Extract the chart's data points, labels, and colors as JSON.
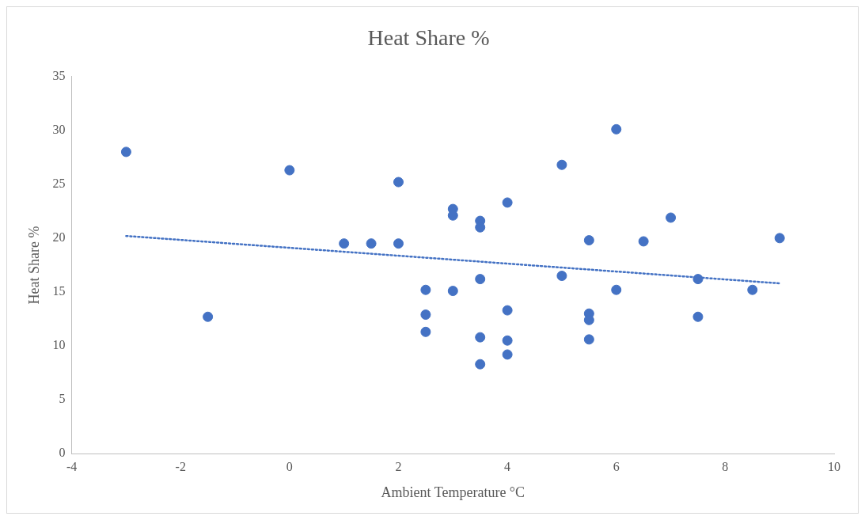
{
  "chart_data": {
    "type": "scatter",
    "title": "Heat Share %",
    "xlabel": "Ambient Temperature °C",
    "ylabel": "Heat Share %",
    "xlim": [
      -4,
      10
    ],
    "xticks": [
      -4,
      -2,
      0,
      2,
      4,
      6,
      8,
      10
    ],
    "ylim": [
      0,
      35
    ],
    "yticks": [
      0,
      5,
      10,
      15,
      20,
      25,
      30,
      35
    ],
    "grid": false,
    "legend": false,
    "marker": "circle",
    "series": [
      {
        "type": "scatter",
        "color": "#4472c4",
        "x": [
          -3,
          -1.5,
          0,
          1,
          1.5,
          2,
          2,
          2.5,
          2.5,
          2.5,
          3,
          3,
          3,
          3.5,
          3.5,
          3.5,
          3.5,
          3.5,
          4,
          4,
          4,
          4,
          5,
          5,
          5.5,
          5.5,
          5.5,
          5.5,
          6,
          6,
          6.5,
          7,
          7.5,
          7.5,
          8.5,
          9
        ],
        "values": [
          28,
          12.7,
          26.3,
          19.5,
          19.5,
          25.2,
          19.5,
          15.2,
          12.9,
          11.3,
          22.7,
          22.1,
          15.1,
          21.6,
          21,
          16.2,
          10.8,
          8.3,
          23.3,
          13.3,
          10.5,
          9.2,
          26.8,
          16.5,
          19.8,
          13,
          12.4,
          10.6,
          30.1,
          15.2,
          19.7,
          21.9,
          16.2,
          12.7,
          15.2,
          20
        ]
      },
      {
        "type": "line",
        "color": "#4472c4",
        "line_style": "dotted",
        "marker": "none",
        "x": [
          -3,
          9
        ],
        "values": [
          20.2,
          15.8
        ]
      }
    ]
  }
}
